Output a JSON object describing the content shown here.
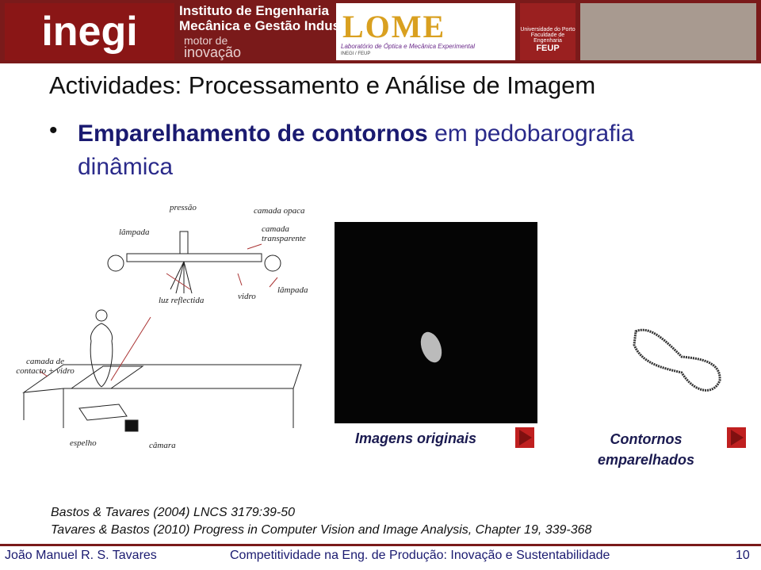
{
  "header": {
    "logos": [
      "inegi",
      "Instituto de Engenharia",
      "Mecânica e Gestão Industrial",
      "motor de",
      "inovação",
      "LOME",
      "Laboratório de Óptica e Mecânica Experimental",
      "INEGI / FEUP",
      "Universidade do Porto",
      "Faculdade de Engenharia",
      "FEUP"
    ]
  },
  "title": "Actividades: Processamento e Análise de Imagem",
  "bullet": {
    "bold": "Emparelhamento de contornos",
    "rest": " em pedobarografia dinâmica"
  },
  "diagram": {
    "labels": [
      "pressão",
      "camada opaca",
      "lâmpada",
      "camada transparente",
      "luz reflectida",
      "vidro",
      "lâmpada",
      "camada de contacto + vidro",
      "espelho",
      "câmara"
    ]
  },
  "panels": [
    "Imagens originais",
    "Contornos emparelhados"
  ],
  "references": [
    "Bastos & Tavares (2004) LNCS 3179:39-50",
    "Tavares & Bastos (2010) Progress in Computer Vision and Image Analysis, Chapter 19, 339-368"
  ],
  "footer": {
    "author": "João Manuel R. S. Tavares",
    "course": "Competitividade na Eng. de Produção: Inovação e Sustentabilidade",
    "page": "10"
  }
}
